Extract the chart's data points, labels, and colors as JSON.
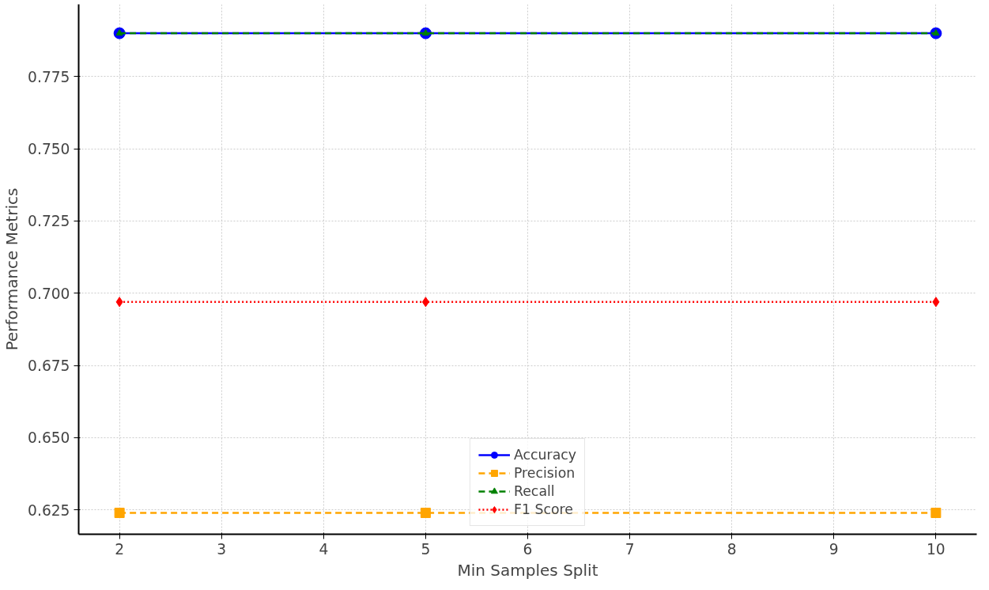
{
  "chart_data": {
    "type": "line",
    "xlabel": "Min Samples Split",
    "ylabel": "Performance Metrics",
    "x": [
      2,
      5,
      10
    ],
    "series": [
      {
        "name": "Accuracy",
        "color": "#0000ff",
        "values": [
          0.79,
          0.79,
          0.79
        ],
        "marker": "circle",
        "line_style": "solid"
      },
      {
        "name": "Precision",
        "color": "#ffa500",
        "values": [
          0.624,
          0.624,
          0.624
        ],
        "marker": "square",
        "line_style": "dashed"
      },
      {
        "name": "Recall",
        "color": "#008000",
        "values": [
          0.79,
          0.79,
          0.79
        ],
        "marker": "triangle",
        "line_style": "dashed"
      },
      {
        "name": "F1 Score",
        "color": "#ff0000",
        "values": [
          0.697,
          0.697,
          0.697
        ],
        "marker": "diamond",
        "line_style": "dotted"
      }
    ],
    "xlim": [
      1.6,
      10.4
    ],
    "ylim": [
      0.6166,
      0.8
    ],
    "xticks": [
      2,
      3,
      4,
      5,
      6,
      7,
      8,
      9,
      10
    ],
    "yticks": [
      {
        "value": 0.625,
        "label": "0.625"
      },
      {
        "value": 0.65,
        "label": "0.650"
      },
      {
        "value": 0.675,
        "label": "0.675"
      },
      {
        "value": 0.7,
        "label": "0.700"
      },
      {
        "value": 0.725,
        "label": "0.725"
      },
      {
        "value": 0.75,
        "label": "0.750"
      },
      {
        "value": 0.775,
        "label": "0.775"
      }
    ],
    "grid": true,
    "legend": "bottom"
  }
}
